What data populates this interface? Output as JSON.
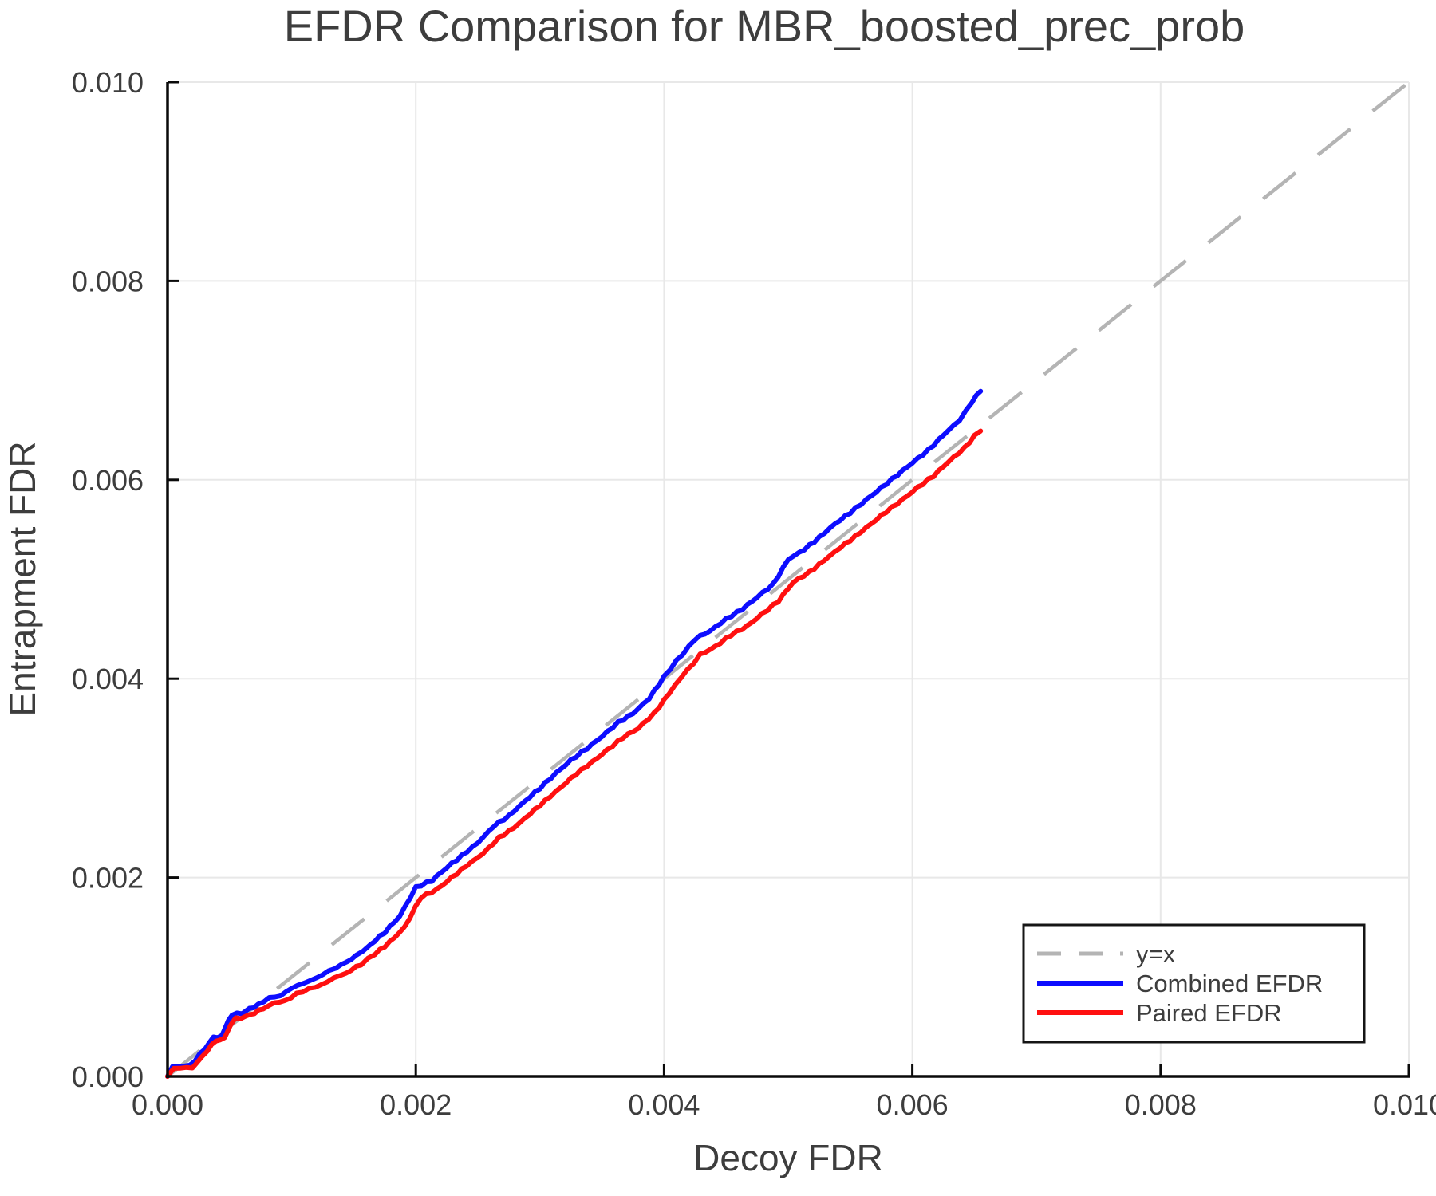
{
  "title": "EFDR Comparison for MBR_boosted_prec_prob",
  "axes": {
    "xlabel": "Decoy FDR",
    "ylabel": "Entrapment FDR",
    "xtick_labels": [
      "0.000",
      "0.002",
      "0.004",
      "0.006",
      "0.008",
      "0.010"
    ],
    "ytick_labels": [
      "0.000",
      "0.002",
      "0.004",
      "0.006",
      "0.008",
      "0.010"
    ]
  },
  "legend": {
    "identity_label": "y=x",
    "combined_label": "Combined EFDR",
    "paired_label": "Paired EFDR"
  },
  "colors": {
    "combined": "#0d0dff",
    "paired": "#ff1010",
    "identity": "#b4b4b4",
    "grid": "#e8e8e8",
    "spine": "#0a0a0a",
    "text": "#3d3d3d",
    "legend_border": "#151515"
  },
  "chart_data": {
    "type": "line",
    "title": "EFDR Comparison for MBR_boosted_prec_prob",
    "xlabel": "Decoy FDR",
    "ylabel": "Entrapment FDR",
    "xlim": [
      0.0,
      0.01
    ],
    "ylim": [
      0.0,
      0.01
    ],
    "xticks": [
      0.0,
      0.002,
      0.004,
      0.006,
      0.008,
      0.01
    ],
    "yticks": [
      0.0,
      0.002,
      0.004,
      0.006,
      0.008,
      0.01
    ],
    "grid": true,
    "legend_position": "bottom-right",
    "series": [
      {
        "name": "y=x",
        "style": "dashed",
        "color": "#b4b4b4",
        "points": [
          [
            0.0,
            0.0
          ],
          [
            0.01,
            0.01
          ]
        ]
      },
      {
        "name": "Combined EFDR",
        "style": "solid",
        "color": "#0d0dff",
        "points": [
          [
            0.0,
            0.0
          ],
          [
            4e-05,
            0.0001
          ],
          [
            0.00018,
            0.00011
          ],
          [
            0.00022,
            0.00016
          ],
          [
            0.0003,
            0.00028
          ],
          [
            0.00037,
            0.00039
          ],
          [
            0.00044,
            0.00041
          ],
          [
            0.00049,
            0.00057
          ],
          [
            0.00052,
            0.00062
          ],
          [
            0.0006,
            0.00064
          ],
          [
            0.00066,
            0.00068
          ],
          [
            0.00073,
            0.00072
          ],
          [
            0.00082,
            0.00079
          ],
          [
            0.00091,
            0.00081
          ],
          [
            0.001,
            0.00089
          ],
          [
            0.0011,
            0.00094
          ],
          [
            0.0012,
            0.00099
          ],
          [
            0.0013,
            0.00106
          ],
          [
            0.0014,
            0.00112
          ],
          [
            0.00152,
            0.00121
          ],
          [
            0.00163,
            0.00132
          ],
          [
            0.00175,
            0.00145
          ],
          [
            0.00187,
            0.00161
          ],
          [
            0.002,
            0.0019
          ],
          [
            0.00213,
            0.00197
          ],
          [
            0.00225,
            0.0021
          ],
          [
            0.00237,
            0.00222
          ],
          [
            0.0025,
            0.00235
          ],
          [
            0.00263,
            0.00252
          ],
          [
            0.00275,
            0.00262
          ],
          [
            0.00288,
            0.00277
          ],
          [
            0.003,
            0.0029
          ],
          [
            0.00313,
            0.00305
          ],
          [
            0.00325,
            0.00318
          ],
          [
            0.00338,
            0.0033
          ],
          [
            0.0035,
            0.00342
          ],
          [
            0.00363,
            0.00356
          ],
          [
            0.00375,
            0.00365
          ],
          [
            0.00388,
            0.0038
          ],
          [
            0.004,
            0.00402
          ],
          [
            0.0041,
            0.00418
          ],
          [
            0.0042,
            0.00432
          ],
          [
            0.00425,
            0.0044
          ],
          [
            0.00437,
            0.00448
          ],
          [
            0.0045,
            0.0046
          ],
          [
            0.00463,
            0.0047
          ],
          [
            0.00475,
            0.00482
          ],
          [
            0.00488,
            0.00495
          ],
          [
            0.005,
            0.0052
          ],
          [
            0.00513,
            0.0053
          ],
          [
            0.00525,
            0.00542
          ],
          [
            0.00538,
            0.00556
          ],
          [
            0.0055,
            0.00567
          ],
          [
            0.00563,
            0.0058
          ],
          [
            0.00575,
            0.00592
          ],
          [
            0.00588,
            0.00605
          ],
          [
            0.006,
            0.00617
          ],
          [
            0.00613,
            0.0063
          ],
          [
            0.00625,
            0.00645
          ],
          [
            0.00638,
            0.0066
          ],
          [
            0.00648,
            0.00678
          ],
          [
            0.00655,
            0.0069
          ]
        ]
      },
      {
        "name": "Paired EFDR",
        "style": "solid",
        "color": "#ff1010",
        "points": [
          [
            0.0,
            0.0
          ],
          [
            5e-05,
            8e-05
          ],
          [
            0.0002,
            9e-05
          ],
          [
            0.00024,
            0.00014
          ],
          [
            0.00032,
            0.00026
          ],
          [
            0.00039,
            0.00036
          ],
          [
            0.00046,
            0.00038
          ],
          [
            0.00051,
            0.00053
          ],
          [
            0.00055,
            0.00058
          ],
          [
            0.00063,
            0.0006
          ],
          [
            0.0007,
            0.00064
          ],
          [
            0.00077,
            0.00068
          ],
          [
            0.00086,
            0.00074
          ],
          [
            0.00095,
            0.00076
          ],
          [
            0.00104,
            0.00083
          ],
          [
            0.00114,
            0.00088
          ],
          [
            0.00124,
            0.00092
          ],
          [
            0.00134,
            0.00099
          ],
          [
            0.00144,
            0.00104
          ],
          [
            0.00156,
            0.00113
          ],
          [
            0.00167,
            0.00123
          ],
          [
            0.00179,
            0.00135
          ],
          [
            0.00191,
            0.0015
          ],
          [
            0.00204,
            0.0018
          ],
          [
            0.00217,
            0.00188
          ],
          [
            0.00229,
            0.002
          ],
          [
            0.00241,
            0.00212
          ],
          [
            0.00254,
            0.00224
          ],
          [
            0.00267,
            0.0024
          ],
          [
            0.00279,
            0.0025
          ],
          [
            0.00292,
            0.00264
          ],
          [
            0.00304,
            0.00277
          ],
          [
            0.00317,
            0.00291
          ],
          [
            0.00329,
            0.00304
          ],
          [
            0.00342,
            0.00316
          ],
          [
            0.00354,
            0.00328
          ],
          [
            0.00367,
            0.00341
          ],
          [
            0.00379,
            0.0035
          ],
          [
            0.00392,
            0.00365
          ],
          [
            0.00404,
            0.00385
          ],
          [
            0.00414,
            0.00402
          ],
          [
            0.00424,
            0.00416
          ],
          [
            0.00429,
            0.00424
          ],
          [
            0.00441,
            0.00432
          ],
          [
            0.00454,
            0.00444
          ],
          [
            0.00467,
            0.00453
          ],
          [
            0.00479,
            0.00465
          ],
          [
            0.00492,
            0.00478
          ],
          [
            0.00504,
            0.00497
          ],
          [
            0.00517,
            0.00507
          ],
          [
            0.00529,
            0.00519
          ],
          [
            0.00542,
            0.00532
          ],
          [
            0.00554,
            0.00543
          ],
          [
            0.00567,
            0.00556
          ],
          [
            0.00579,
            0.00568
          ],
          [
            0.00592,
            0.0058
          ],
          [
            0.00604,
            0.00592
          ],
          [
            0.00617,
            0.00604
          ],
          [
            0.00629,
            0.00618
          ],
          [
            0.00642,
            0.00632
          ],
          [
            0.0065,
            0.00644
          ],
          [
            0.00655,
            0.0065
          ]
        ]
      }
    ]
  }
}
